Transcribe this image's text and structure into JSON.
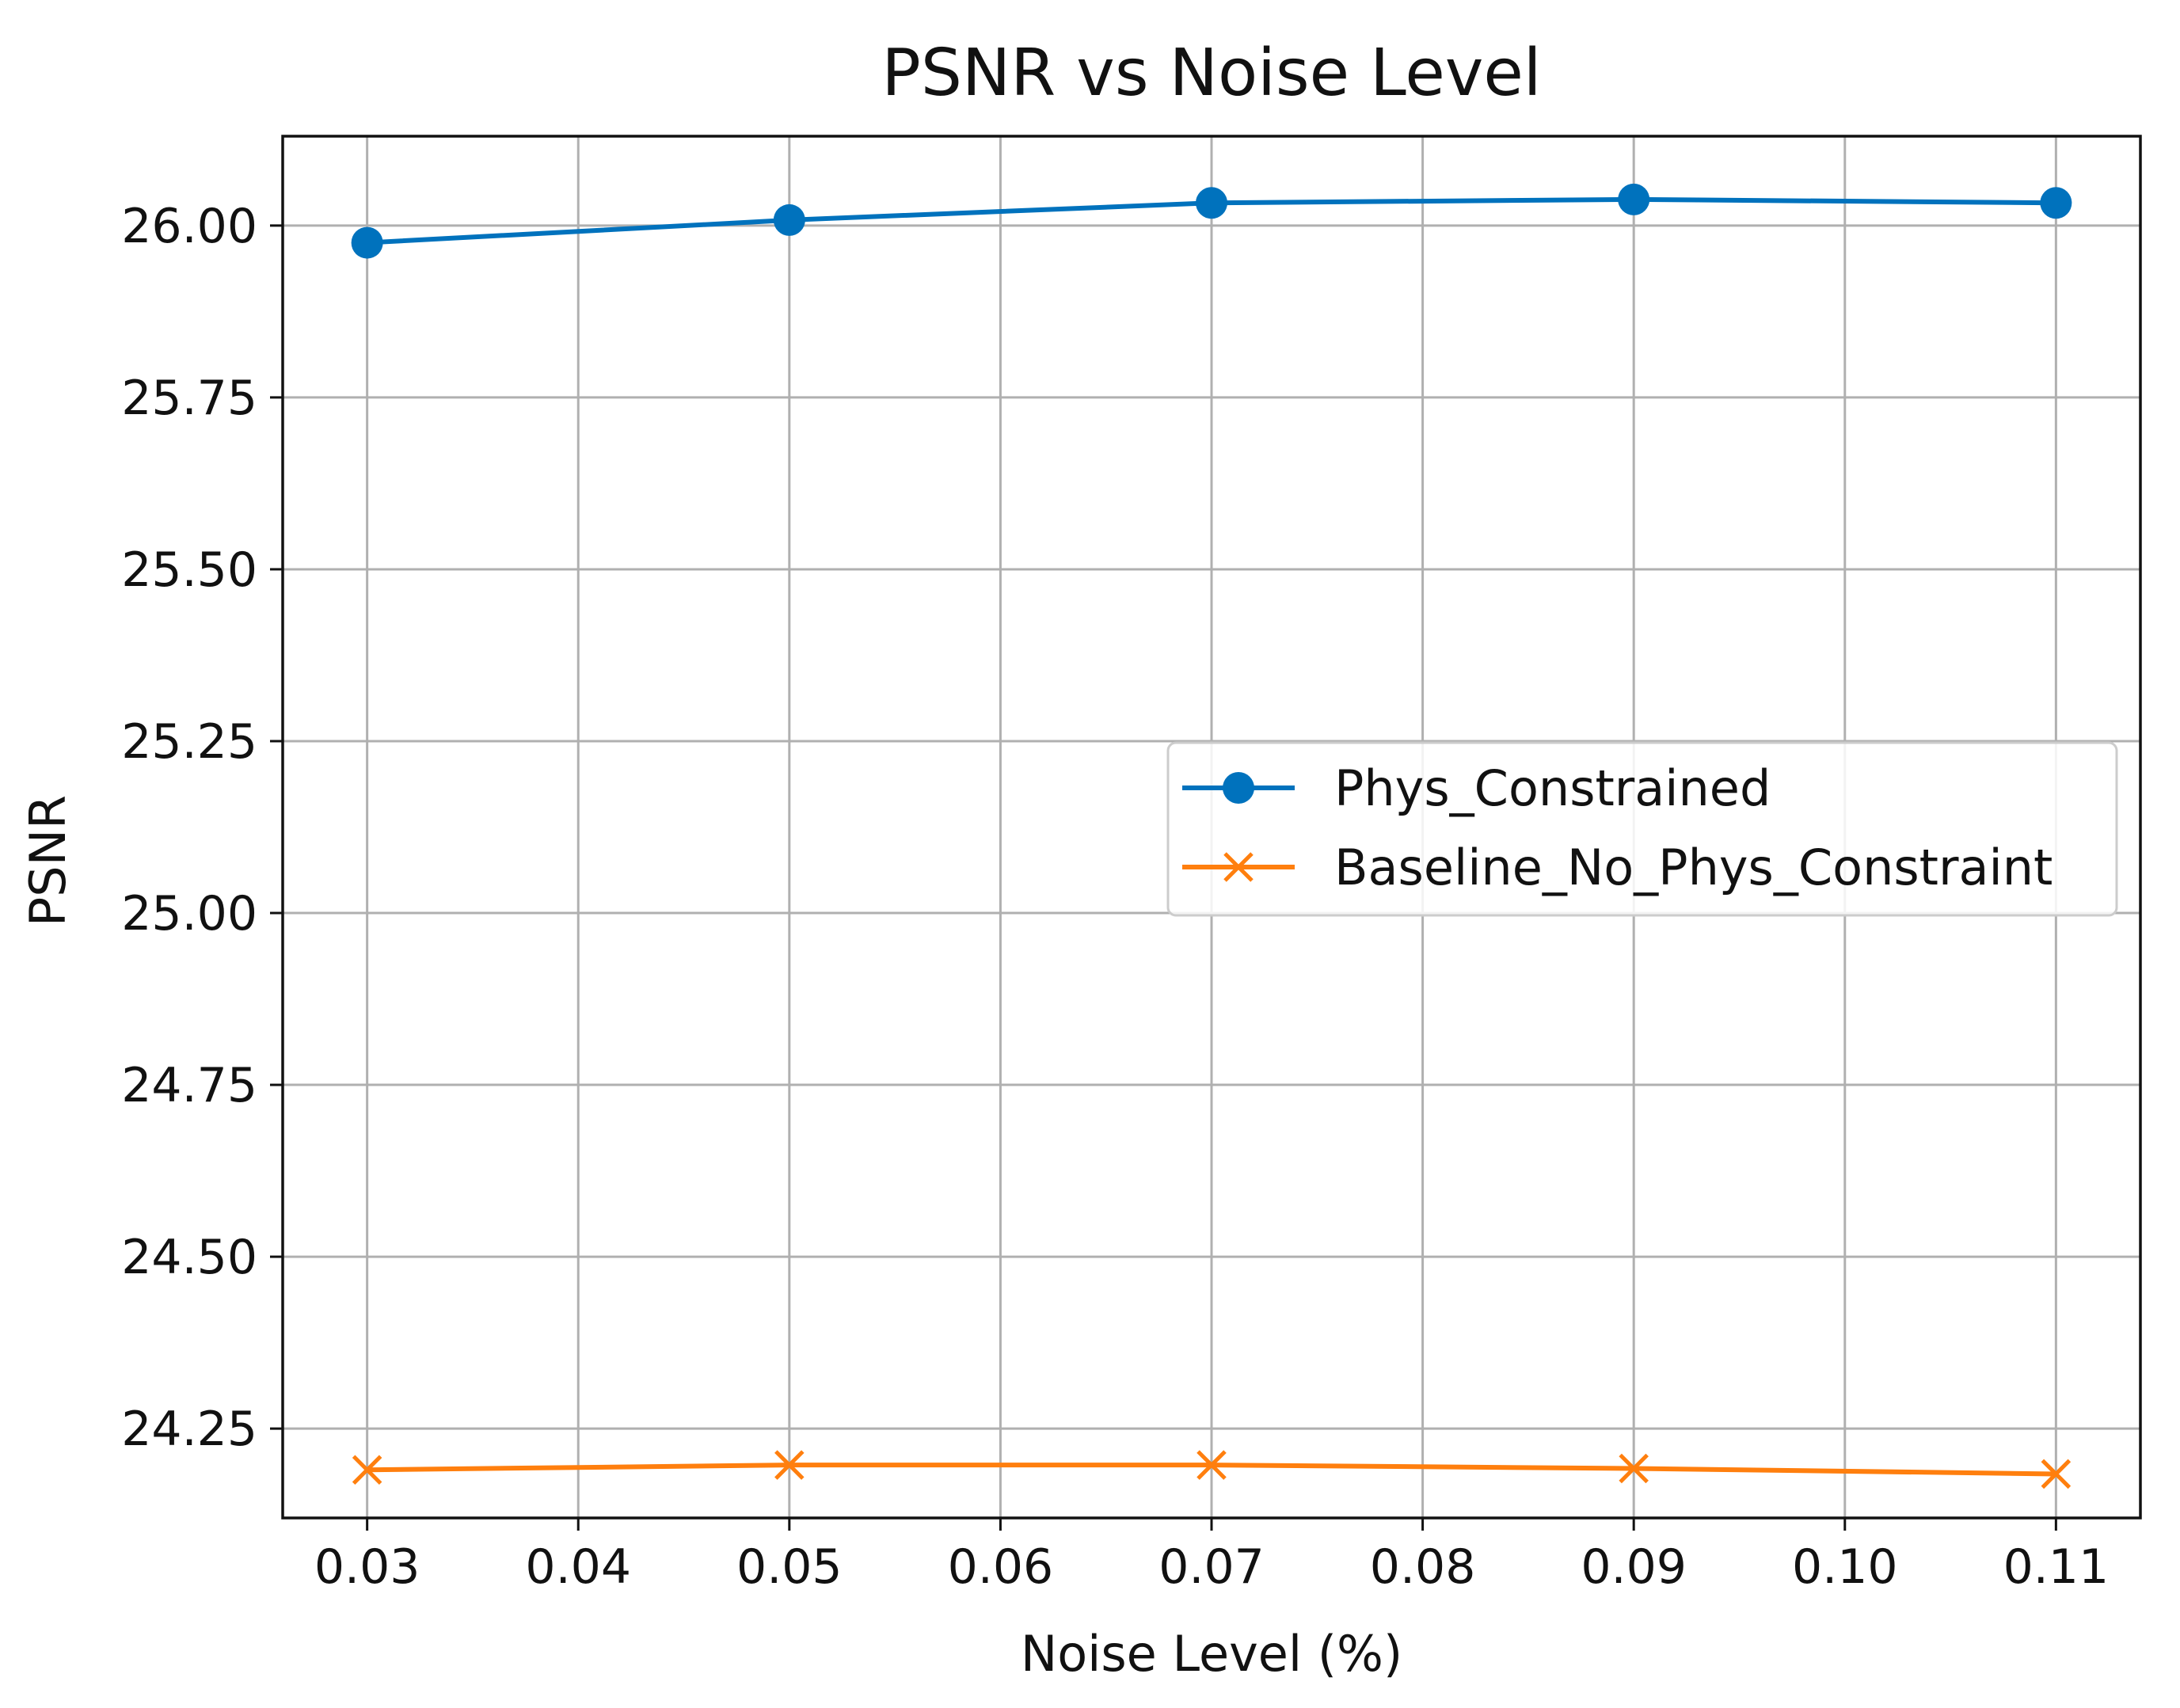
{
  "chart_data": {
    "type": "line",
    "title": "PSNR vs Noise Level",
    "xlabel": "Noise Level (%)",
    "ylabel": "PSNR",
    "x": [
      0.03,
      0.05,
      0.07,
      0.09,
      0.11
    ],
    "xlim": [
      0.026,
      0.114
    ],
    "ylim": [
      24.12,
      26.13
    ],
    "xticks": [
      0.03,
      0.04,
      0.05,
      0.06,
      0.07,
      0.08,
      0.09,
      0.1,
      0.11
    ],
    "xtick_labels": [
      "0.03",
      "0.04",
      "0.05",
      "0.06",
      "0.07",
      "0.08",
      "0.09",
      "0.10",
      "0.11"
    ],
    "yticks": [
      24.25,
      24.5,
      24.75,
      25.0,
      25.25,
      25.5,
      25.75,
      26.0
    ],
    "ytick_labels": [
      "24.25",
      "24.50",
      "24.75",
      "25.00",
      "25.25",
      "25.50",
      "25.75",
      "26.00"
    ],
    "grid": true,
    "legend_position": "center-right",
    "series": [
      {
        "name": "Phys_Constrained",
        "marker": "circle",
        "color": "#0072BD",
        "values": [
          25.975,
          26.008,
          26.033,
          26.038,
          26.033
        ]
      },
      {
        "name": "Baseline_No_Phys_Constraint",
        "marker": "x",
        "color": "#FF7F0E",
        "values": [
          24.19,
          24.197,
          24.197,
          24.192,
          24.184
        ]
      }
    ]
  }
}
